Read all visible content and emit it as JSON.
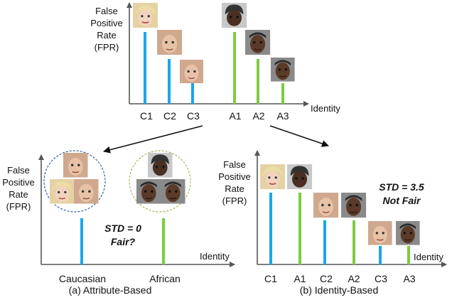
{
  "colors": {
    "caucasian": "#1aa7e8",
    "african": "#7ccc3f",
    "axis": "#555555",
    "circle_caucasian": "#2f5f9e",
    "circle_african": "#9cbd55"
  },
  "icons": {
    "face": "face-thumbnail-icon"
  },
  "panel_top": {
    "ylabel": [
      "False",
      "Positive",
      "Rate",
      "(FPR)"
    ],
    "xlabel": "Identity",
    "categories": [
      "C1",
      "C2",
      "C3",
      "A1",
      "A2",
      "A3"
    ]
  },
  "panel_a": {
    "ylabel": [
      "False",
      "Positive",
      "Rate",
      "(FPR)"
    ],
    "xlabel": "Identity",
    "categories": [
      "Caucasian",
      "African"
    ],
    "note_line1": "STD = 0",
    "note_line2": "Fair?",
    "caption": "(a) Attribute-Based"
  },
  "panel_b": {
    "ylabel": [
      "False",
      "Positive",
      "Rate",
      "(FPR)"
    ],
    "xlabel": "Identity",
    "categories": [
      "C1",
      "A1",
      "C2",
      "A2",
      "C3",
      "A3"
    ],
    "note_line1": "STD = 3.5",
    "note_line2": "Not Fair",
    "caption": "(b) Identity-Based"
  }
}
